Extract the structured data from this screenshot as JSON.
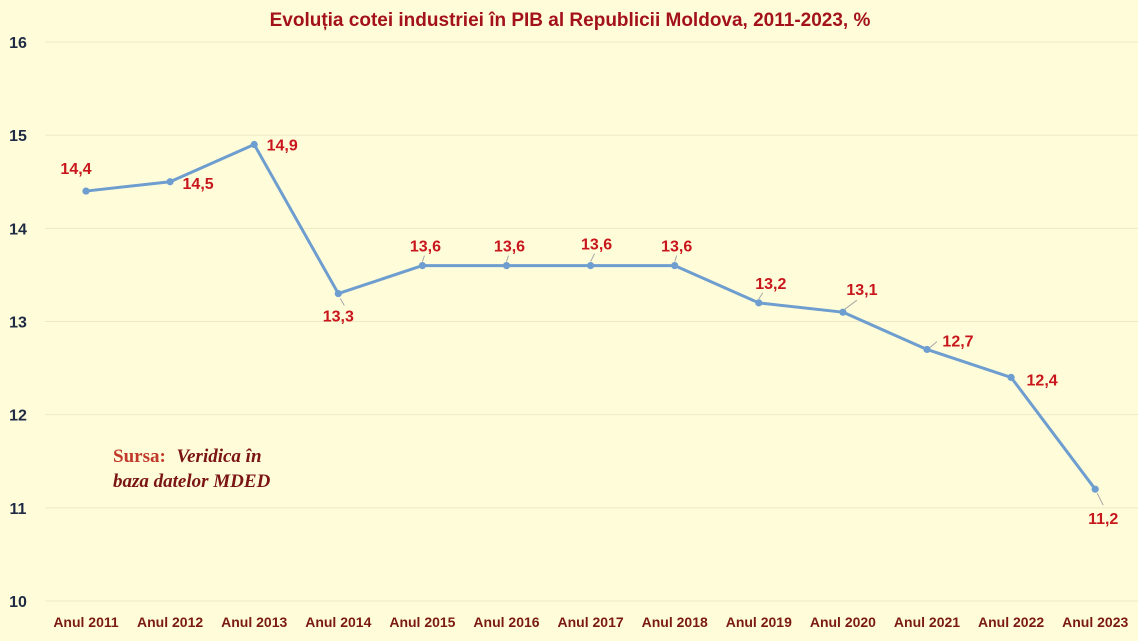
{
  "chart_data": {
    "type": "line",
    "title": "Evoluția cotei industriei în PIB al Republicii Moldova, 2011-2023, %",
    "xlabel": "",
    "ylabel": "",
    "categories": [
      "Anul 2011",
      "Anul 2012",
      "Anul 2013",
      "Anul 2014",
      "Anul 2015",
      "Anul 2016",
      "Anul 2017",
      "Anul 2018",
      "Anul 2019",
      "Anul 2020",
      "Anul 2021",
      "Anul 2022",
      "Anul 2023"
    ],
    "series": [
      {
        "values": [
          14.4,
          14.5,
          14.9,
          13.3,
          13.6,
          13.6,
          13.6,
          13.6,
          13.2,
          13.1,
          12.7,
          12.4,
          11.2
        ]
      }
    ],
    "data_labels": [
      "14,4",
      "14,5",
      "14,9",
      "13,3",
      "13,6",
      "13,6",
      "13,6",
      "13,6",
      "13,2",
      "13,1",
      "12,7",
      "12,4",
      "11,2"
    ],
    "ylim": [
      10,
      16
    ],
    "yticks": [
      10,
      11,
      12,
      13,
      14,
      15,
      16
    ],
    "grid": true,
    "legend": "none",
    "colors": {
      "line": "#6E9DCF",
      "labels": "#C8161D",
      "title": "#A3121B",
      "background": "#FFFDD9"
    },
    "source_note": {
      "key": "Sursa:",
      "line1": "Veridica în",
      "line2": "baza datelor MDED"
    }
  }
}
